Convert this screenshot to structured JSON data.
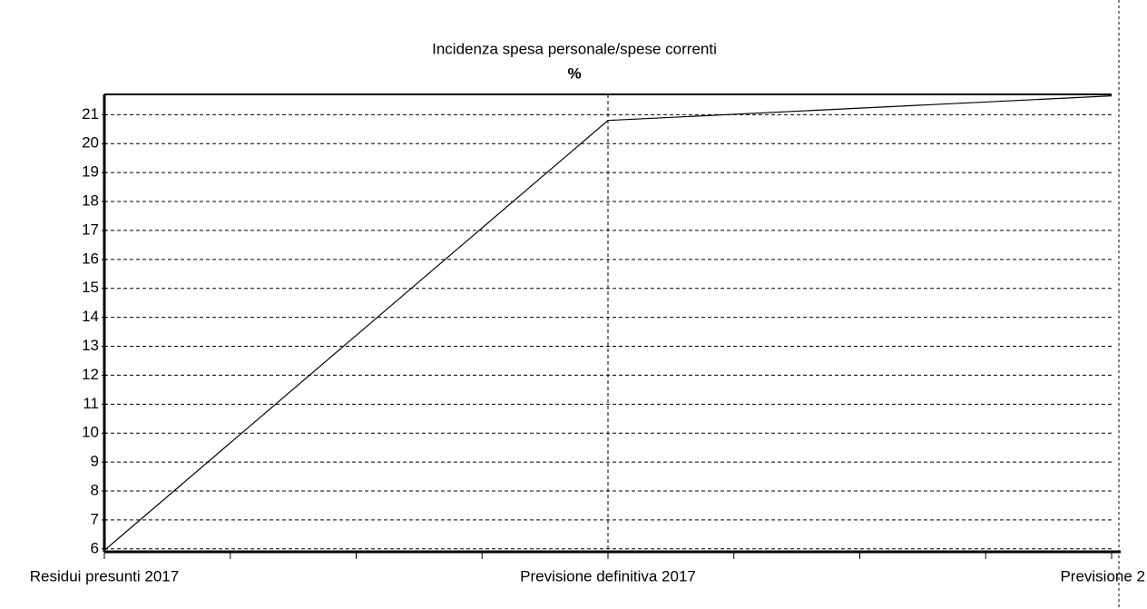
{
  "chart_data": {
    "type": "line",
    "title": "Incidenza spesa personale/spese correnti",
    "subtitle": "%",
    "categories": [
      "Residui presunti 2017",
      "Previsione definitiva 2017",
      "Previsione 2"
    ],
    "series": [
      {
        "name": "Incidenza spesa personale/spese correnti",
        "color": "#000000",
        "values": [
          5.95,
          20.8,
          21.65
        ]
      }
    ],
    "ylim": [
      5.9,
      21.7
    ],
    "yticks": [
      6,
      7,
      8,
      9,
      10,
      11,
      12,
      13,
      14,
      15,
      16,
      17,
      18,
      19,
      20,
      21
    ],
    "grid": true
  }
}
